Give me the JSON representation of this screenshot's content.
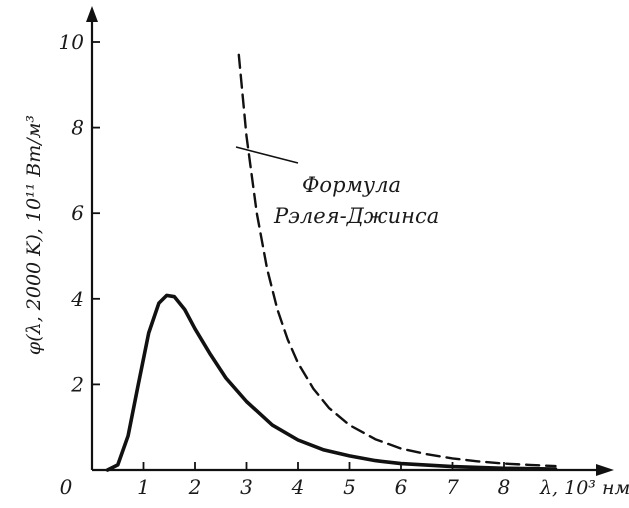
{
  "chart_data": {
    "type": "line",
    "title": "",
    "xlabel": "λ, 10³ нм",
    "ylabel": "φ(λ, 2000 K), 10¹¹ Вт/м³",
    "xlim": [
      0,
      9
    ],
    "ylim": [
      0,
      10
    ],
    "x_ticks": [
      "0",
      "1",
      "2",
      "3",
      "4",
      "5",
      "6",
      "7",
      "8"
    ],
    "y_ticks": [
      "10",
      "8",
      "6",
      "4",
      "2"
    ],
    "grid": false,
    "legend": "none",
    "series": [
      {
        "style": "solid",
        "x": [
          0.3,
          0.5,
          0.7,
          0.9,
          1.1,
          1.3,
          1.45,
          1.6,
          1.8,
          2.0,
          2.3,
          2.6,
          3.0,
          3.5,
          4.0,
          4.5,
          5.0,
          5.5,
          6.0,
          7.0,
          8.0,
          9.0
        ],
        "y": [
          0.0,
          0.12,
          0.8,
          2.0,
          3.2,
          3.9,
          4.08,
          4.05,
          3.75,
          3.3,
          2.7,
          2.15,
          1.6,
          1.05,
          0.7,
          0.47,
          0.33,
          0.22,
          0.15,
          0.08,
          0.04,
          0.02
        ]
      },
      {
        "name": "Формула Рэлея-Джинса",
        "style": "dashed",
        "x": [
          2.85,
          3.0,
          3.2,
          3.4,
          3.6,
          3.8,
          4.0,
          4.3,
          4.6,
          5.0,
          5.5,
          6.0,
          6.5,
          7.0,
          7.5,
          8.0,
          8.5,
          9.0
        ],
        "y": [
          9.7,
          7.8,
          6.0,
          4.7,
          3.75,
          3.05,
          2.5,
          1.9,
          1.45,
          1.05,
          0.72,
          0.5,
          0.37,
          0.27,
          0.2,
          0.15,
          0.12,
          0.09
        ]
      }
    ],
    "annotations": [
      {
        "text_line1": "Формула",
        "text_line2": "Рэлея-Джинса",
        "points_to": "dashed series"
      }
    ]
  }
}
